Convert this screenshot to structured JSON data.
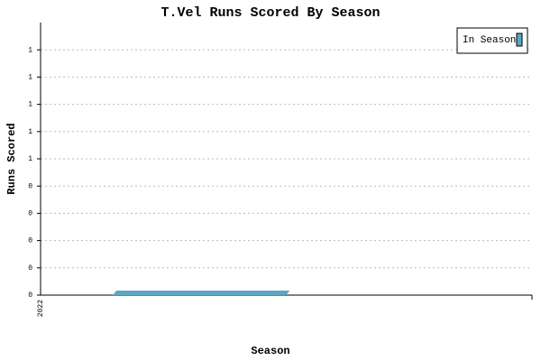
{
  "chart_data": {
    "type": "bar",
    "title": "T.Vel Runs Scored By Season",
    "x_label": "Season",
    "y_label": "Runs Scored",
    "categories": [
      "2022"
    ],
    "series": [
      {
        "name": "In Season",
        "color": "#5aa7c2",
        "values": [
          0
        ]
      }
    ],
    "ylim": [
      0,
      1
    ],
    "yticks": [
      0,
      {
        "value": 0.1,
        "label": "0"
      },
      {
        "value": 0.2,
        "label": "0"
      },
      {
        "value": 0.3,
        "label": "0"
      },
      {
        "value": 0.4,
        "label": "0"
      },
      {
        "value": 0.5,
        "label": "1"
      },
      {
        "value": 0.6,
        "label": "1"
      },
      {
        "value": 0.7,
        "label": "1"
      },
      {
        "value": 0.8,
        "label": "1"
      },
      {
        "value": 0.9,
        "label": "1"
      }
    ],
    "grid": true,
    "legend": "top-right"
  }
}
